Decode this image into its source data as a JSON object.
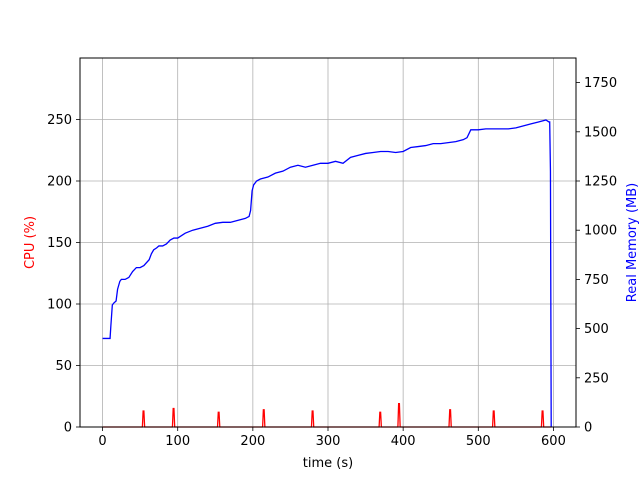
{
  "chart_data": {
    "type": "line",
    "title": "",
    "xlabel": "time (s)",
    "ylabel_left": "CPU (%)",
    "ylabel_right": "Real Memory (MB)",
    "xlim": [
      -30,
      630
    ],
    "ylim_left": [
      0,
      300
    ],
    "ylim_right": [
      0,
      1875
    ],
    "x_ticks": [
      0,
      100,
      200,
      300,
      400,
      500,
      600
    ],
    "y_ticks_left": [
      0,
      50,
      100,
      150,
      200,
      250
    ],
    "y_ticks_right": [
      0,
      250,
      500,
      750,
      1000,
      1250,
      1500,
      1750
    ],
    "grid": true,
    "colors": {
      "cpu": "#ff0000",
      "memory": "#0000ff",
      "grid": "#b0b0b0"
    },
    "series": [
      {
        "axis": "left",
        "color": "#ff0000",
        "x": [
          0,
          53,
          54,
          55,
          56,
          93,
          94,
          95,
          96,
          153,
          154,
          155,
          156,
          213,
          214,
          215,
          216,
          278,
          279,
          280,
          281,
          368,
          369,
          370,
          371,
          393,
          394,
          395,
          396,
          461,
          462,
          463,
          464,
          519,
          520,
          521,
          522,
          584,
          585,
          586,
          587,
          597
        ],
        "y": [
          0,
          0,
          13,
          13,
          0,
          0,
          15,
          15,
          0,
          0,
          12,
          12,
          0,
          0,
          14,
          14,
          0,
          0,
          13,
          13,
          0,
          0,
          12,
          12,
          0,
          0,
          19,
          19,
          0,
          0,
          14,
          14,
          0,
          0,
          13,
          13,
          0,
          0,
          13,
          13,
          0,
          0
        ]
      },
      {
        "axis": "right",
        "color": "#0000ff",
        "x": [
          0,
          10,
          11,
          13,
          15,
          18,
          20,
          23,
          25,
          30,
          35,
          40,
          45,
          50,
          55,
          62,
          65,
          68,
          72,
          75,
          80,
          85,
          90,
          95,
          100,
          110,
          120,
          130,
          140,
          150,
          160,
          170,
          180,
          190,
          195,
          197,
          199,
          201,
          205,
          210,
          220,
          230,
          240,
          250,
          260,
          270,
          280,
          290,
          300,
          310,
          320,
          330,
          340,
          350,
          360,
          370,
          380,
          390,
          400,
          410,
          420,
          430,
          440,
          450,
          460,
          470,
          480,
          485,
          490,
          500,
          510,
          520,
          530,
          540,
          550,
          560,
          570,
          580,
          590,
          594,
          595,
          596,
          597
        ],
        "y": [
          450,
          450,
          510,
          620,
          630,
          640,
          700,
          740,
          750,
          750,
          760,
          790,
          810,
          810,
          820,
          850,
          880,
          900,
          910,
          920,
          920,
          930,
          950,
          960,
          960,
          985,
          1000,
          1010,
          1020,
          1035,
          1040,
          1040,
          1050,
          1060,
          1070,
          1100,
          1200,
          1230,
          1250,
          1260,
          1270,
          1290,
          1300,
          1320,
          1330,
          1320,
          1330,
          1340,
          1340,
          1350,
          1340,
          1370,
          1380,
          1390,
          1395,
          1400,
          1400,
          1395,
          1400,
          1420,
          1425,
          1430,
          1440,
          1440,
          1445,
          1450,
          1460,
          1470,
          1510,
          1510,
          1515,
          1515,
          1515,
          1515,
          1520,
          1530,
          1540,
          1550,
          1560,
          1550,
          1550,
          1300,
          0
        ]
      }
    ]
  }
}
